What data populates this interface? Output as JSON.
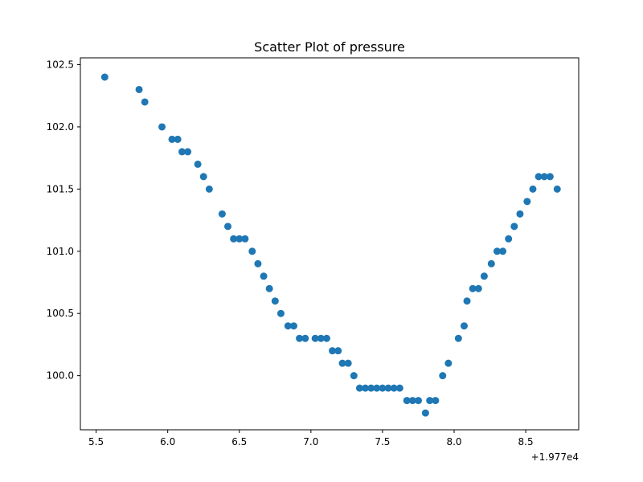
{
  "chart_data": {
    "type": "scatter",
    "title": "Scatter Plot of pressure",
    "xlabel": "",
    "ylabel": "",
    "x_offset_label": "+1.977e4",
    "xlim": [
      5.39,
      8.87
    ],
    "ylim": [
      99.565,
      102.555
    ],
    "x_ticks": [
      5.5,
      6.0,
      6.5,
      7.0,
      7.5,
      8.0,
      8.5
    ],
    "x_tick_labels": [
      "5.5",
      "6.0",
      "6.5",
      "7.0",
      "7.5",
      "8.0",
      "8.5"
    ],
    "y_ticks": [
      100.0,
      100.5,
      101.0,
      101.5,
      102.0,
      102.5
    ],
    "y_tick_labels": [
      "100.0",
      "100.5",
      "101.0",
      "101.5",
      "102.0",
      "102.5"
    ],
    "grid": false,
    "marker_color": "#1f77b4",
    "points": [
      [
        5.56,
        102.4
      ],
      [
        5.8,
        102.3
      ],
      [
        5.84,
        102.2
      ],
      [
        5.96,
        102.0
      ],
      [
        6.03,
        101.9
      ],
      [
        6.07,
        101.9
      ],
      [
        6.1,
        101.8
      ],
      [
        6.14,
        101.8
      ],
      [
        6.21,
        101.7
      ],
      [
        6.25,
        101.6
      ],
      [
        6.29,
        101.5
      ],
      [
        6.38,
        101.3
      ],
      [
        6.42,
        101.2
      ],
      [
        6.46,
        101.1
      ],
      [
        6.5,
        101.1
      ],
      [
        6.54,
        101.1
      ],
      [
        6.59,
        101.0
      ],
      [
        6.63,
        100.9
      ],
      [
        6.67,
        100.8
      ],
      [
        6.71,
        100.7
      ],
      [
        6.75,
        100.6
      ],
      [
        6.79,
        100.5
      ],
      [
        6.84,
        100.4
      ],
      [
        6.88,
        100.4
      ],
      [
        6.92,
        100.3
      ],
      [
        6.96,
        100.3
      ],
      [
        7.03,
        100.3
      ],
      [
        7.07,
        100.3
      ],
      [
        7.11,
        100.3
      ],
      [
        7.15,
        100.2
      ],
      [
        7.19,
        100.2
      ],
      [
        7.22,
        100.1
      ],
      [
        7.26,
        100.1
      ],
      [
        7.3,
        100.0
      ],
      [
        7.34,
        99.9
      ],
      [
        7.38,
        99.9
      ],
      [
        7.42,
        99.9
      ],
      [
        7.46,
        99.9
      ],
      [
        7.5,
        99.9
      ],
      [
        7.54,
        99.9
      ],
      [
        7.58,
        99.9
      ],
      [
        7.62,
        99.9
      ],
      [
        7.67,
        99.8
      ],
      [
        7.71,
        99.8
      ],
      [
        7.75,
        99.8
      ],
      [
        7.8,
        99.7
      ],
      [
        7.83,
        99.8
      ],
      [
        7.87,
        99.8
      ],
      [
        7.92,
        100.0
      ],
      [
        7.96,
        100.1
      ],
      [
        8.03,
        100.3
      ],
      [
        8.07,
        100.4
      ],
      [
        8.09,
        100.6
      ],
      [
        8.13,
        100.7
      ],
      [
        8.17,
        100.7
      ],
      [
        8.21,
        100.8
      ],
      [
        8.26,
        100.9
      ],
      [
        8.3,
        101.0
      ],
      [
        8.34,
        101.0
      ],
      [
        8.38,
        101.1
      ],
      [
        8.42,
        101.2
      ],
      [
        8.46,
        101.3
      ],
      [
        8.51,
        101.4
      ],
      [
        8.55,
        101.5
      ],
      [
        8.59,
        101.6
      ],
      [
        8.63,
        101.6
      ],
      [
        8.67,
        101.6
      ],
      [
        8.72,
        101.5
      ]
    ]
  }
}
